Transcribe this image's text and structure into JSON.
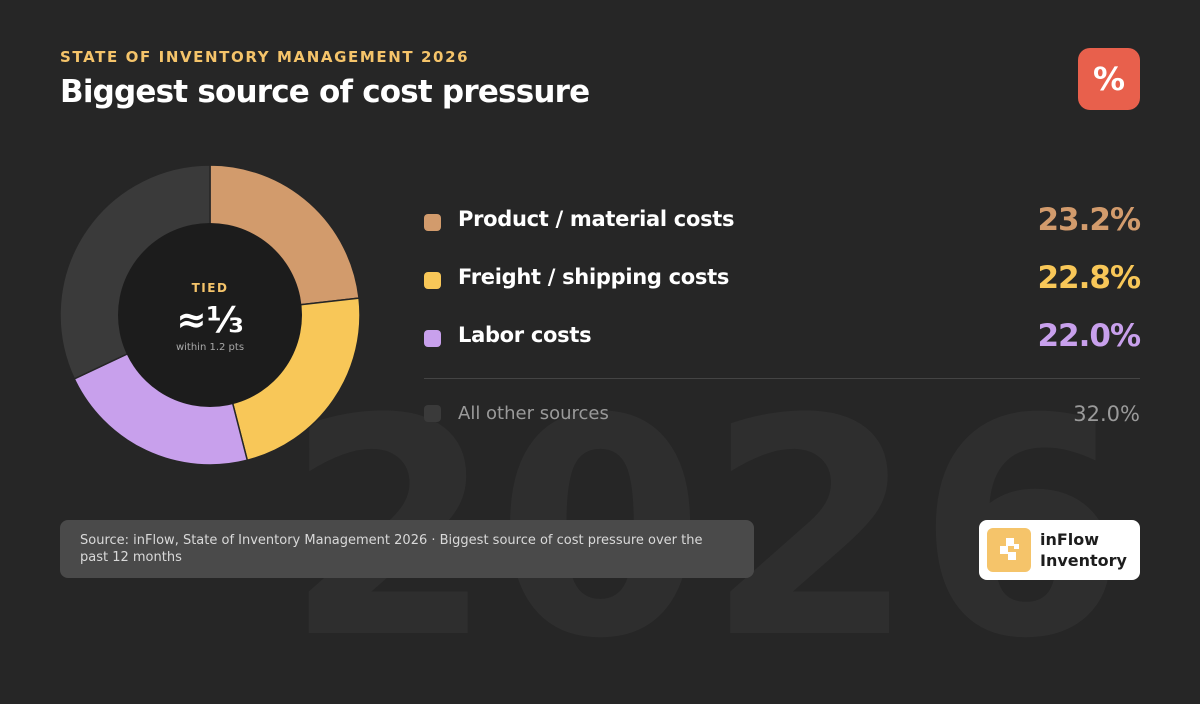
{
  "header": {
    "eyebrow": "STATE OF INVENTORY MANAGEMENT 2026",
    "title": "Biggest source of cost pressure",
    "badge_glyph": "%",
    "badge_color": "#e8604c"
  },
  "watermark_text": "2026",
  "chart_data": {
    "type": "pie",
    "title": "Biggest source of cost pressure",
    "slices": [
      {
        "label": "Product / material costs",
        "value": 23.2,
        "display": "23.2%",
        "color": "#d29b6c"
      },
      {
        "label": "Freight / shipping costs",
        "value": 22.8,
        "display": "22.8%",
        "color": "#f8c758"
      },
      {
        "label": "Labor costs",
        "value": 22.0,
        "display": "22.0%",
        "color": "#c8a0ec"
      },
      {
        "label": "All other sources",
        "value": 32.0,
        "display": "32.0%",
        "color": "#3a3a3a"
      }
    ],
    "center": {
      "kicker": "TIED",
      "value": "≈⅓",
      "note": "within 1.2 pts"
    },
    "legend_position": "right"
  },
  "source_note": "Source: inFlow, State of Inventory Management 2026 · Biggest source of cost pressure over the past 12 months",
  "logo": {
    "name": "inFlow\nInventory",
    "icon": "inflow-logo-icon"
  }
}
